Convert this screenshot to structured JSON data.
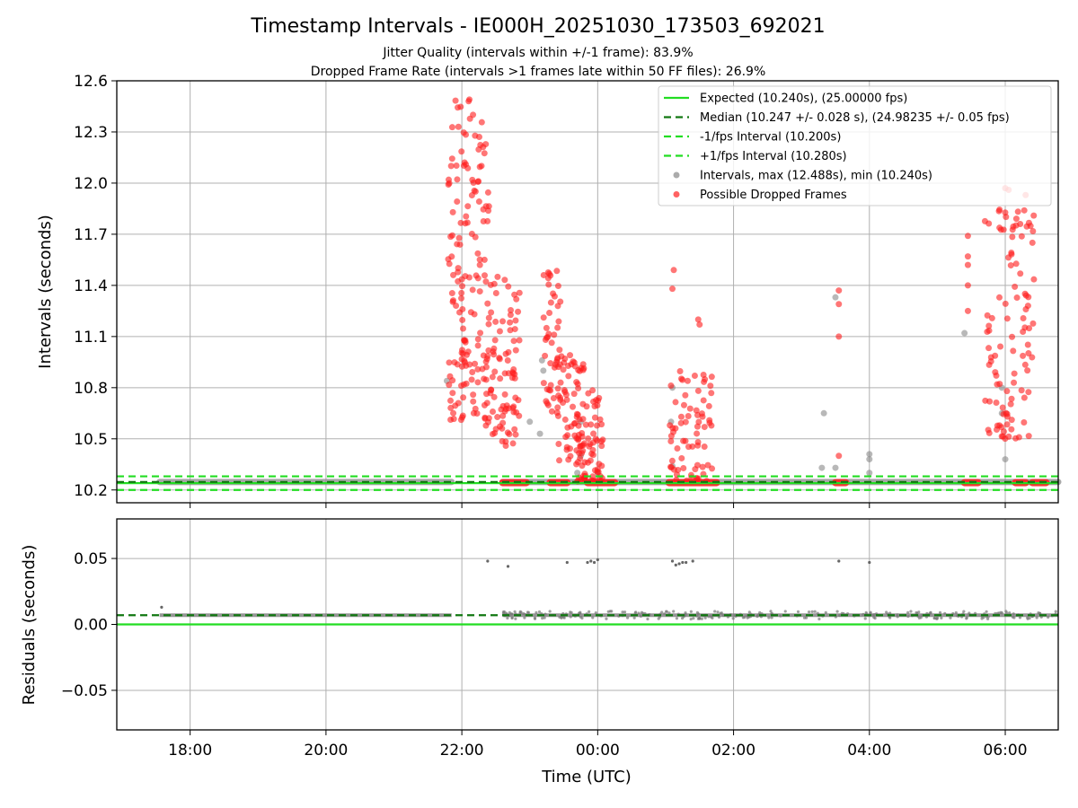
{
  "chart_data": [
    {
      "type": "scatter",
      "panel": "top",
      "title": "Timestamp Intervals - IE000H_20251030_173503_692021",
      "subtitles": [
        "Jitter Quality (intervals within +/-1 frame): 83.9%",
        "Dropped Frame Rate (intervals >1 frames late within 50 FF files): 26.9%"
      ],
      "xlabel": "",
      "ylabel": "Intervals (seconds)",
      "x_range_hours": [
        16.92,
        30.78
      ],
      "ylim": [
        10.125,
        12.6
      ],
      "xticks": [
        {
          "h": 18,
          "label": "18:00"
        },
        {
          "h": 20,
          "label": "20:00"
        },
        {
          "h": 22,
          "label": "22:00"
        },
        {
          "h": 24,
          "label": "00:00"
        },
        {
          "h": 26,
          "label": "02:00"
        },
        {
          "h": 28,
          "label": "04:00"
        },
        {
          "h": 30,
          "label": "06:00"
        }
      ],
      "yticks": [
        {
          "v": 10.2,
          "label": "10.2"
        },
        {
          "v": 10.5,
          "label": "10.5"
        },
        {
          "v": 10.8,
          "label": "10.8"
        },
        {
          "v": 11.1,
          "label": "11.1"
        },
        {
          "v": 11.4,
          "label": "11.4"
        },
        {
          "v": 11.7,
          "label": "11.7"
        },
        {
          "v": 12.0,
          "label": "12.0"
        },
        {
          "v": 12.3,
          "label": "12.3"
        },
        {
          "v": 12.6,
          "label": "12.6"
        }
      ],
      "grid": true,
      "legend_position": "top-right",
      "legend": [
        {
          "label": "Expected (10.240s), (25.00000 fps)",
          "kind": "line",
          "color": "#22dd22",
          "dash": ""
        },
        {
          "label": "Median (10.247 +/- 0.028 s), (24.98235 +/- 0.05 fps)",
          "kind": "line",
          "color": "#117711",
          "dash": "8,5"
        },
        {
          "label": "-1/fps Interval (10.200s)",
          "kind": "line",
          "color": "#22dd22",
          "dash": "8,5"
        },
        {
          "label": "+1/fps Interval (10.280s)",
          "kind": "line",
          "color": "#22dd22",
          "dash": "8,5"
        },
        {
          "label": "Intervals, max (12.488s), min (10.240s)",
          "kind": "marker",
          "color": "#888888"
        },
        {
          "label": "Possible Dropped Frames",
          "kind": "marker",
          "color": "#ff2020"
        }
      ],
      "reference_lines": [
        {
          "name": "expected",
          "y": 10.24,
          "color": "#22dd22",
          "dash": ""
        },
        {
          "name": "median",
          "y": 10.247,
          "color": "#117711",
          "dash": "8,5"
        },
        {
          "name": "minus_one_frame",
          "y": 10.2,
          "color": "#22dd22",
          "dash": "8,5"
        },
        {
          "name": "plus_one_frame",
          "y": 10.28,
          "color": "#22dd22",
          "dash": "8,5"
        }
      ],
      "baseline_segments": [
        {
          "x": [
            17.55,
            21.85
          ],
          "y": 10.247
        },
        {
          "x": [
            22.6,
            30.78
          ],
          "y": 10.247
        }
      ],
      "dropped_frame_clusters": [
        {
          "x": [
            21.8,
            22.4
          ],
          "y": [
            10.6,
            12.5
          ],
          "n": 150
        },
        {
          "x": [
            22.35,
            22.85
          ],
          "y": [
            10.45,
            11.45
          ],
          "n": 90
        },
        {
          "x": [
            23.2,
            23.45
          ],
          "y": [
            10.6,
            11.6
          ],
          "n": 45
        },
        {
          "x": [
            23.4,
            23.8
          ],
          "y": [
            10.35,
            11.0
          ],
          "n": 60
        },
        {
          "x": [
            23.7,
            24.1
          ],
          "y": [
            10.25,
            10.8
          ],
          "n": 70
        },
        {
          "x": [
            25.05,
            25.7
          ],
          "y": [
            10.25,
            10.9
          ],
          "n": 70
        },
        {
          "x": [
            29.7,
            30.45
          ],
          "y": [
            10.5,
            11.9
          ],
          "n": 100
        }
      ],
      "dropped_frame_points": [
        {
          "x": 21.95,
          "y": 12.33
        },
        {
          "x": 22.1,
          "y": 12.48
        },
        {
          "x": 25.5,
          "y": 11.17
        },
        {
          "x": 25.48,
          "y": 11.2
        },
        {
          "x": 25.12,
          "y": 11.49
        },
        {
          "x": 25.1,
          "y": 11.38
        },
        {
          "x": 27.55,
          "y": 11.37
        },
        {
          "x": 27.55,
          "y": 11.29
        },
        {
          "x": 27.55,
          "y": 11.1
        },
        {
          "x": 27.55,
          "y": 10.4
        },
        {
          "x": 29.45,
          "y": 11.69
        },
        {
          "x": 29.45,
          "y": 11.57
        },
        {
          "x": 29.45,
          "y": 11.52
        },
        {
          "x": 29.45,
          "y": 11.4
        },
        {
          "x": 29.45,
          "y": 11.25
        },
        {
          "x": 30.0,
          "y": 11.97
        },
        {
          "x": 30.05,
          "y": 11.96
        },
        {
          "x": 30.3,
          "y": 11.93
        },
        {
          "x": 30.28,
          "y": 11.84
        },
        {
          "x": 30.22,
          "y": 11.76
        },
        {
          "x": 30.4,
          "y": 11.65
        }
      ],
      "dropped_frame_bands": [
        {
          "x": [
            22.6,
            22.95
          ],
          "y": 10.243
        },
        {
          "x": [
            23.3,
            23.55
          ],
          "y": 10.243
        },
        {
          "x": [
            23.85,
            24.25
          ],
          "y": 10.243
        },
        {
          "x": [
            25.05,
            25.75
          ],
          "y": 10.243
        },
        {
          "x": [
            27.5,
            27.65
          ],
          "y": 10.243
        },
        {
          "x": [
            29.4,
            29.6
          ],
          "y": 10.243
        },
        {
          "x": [
            30.15,
            30.3
          ],
          "y": 10.243
        },
        {
          "x": [
            30.4,
            30.6
          ],
          "y": 10.243
        }
      ],
      "gray_points": [
        {
          "x": 21.78,
          "y": 10.84
        },
        {
          "x": 23.0,
          "y": 10.6
        },
        {
          "x": 23.15,
          "y": 10.53
        },
        {
          "x": 23.18,
          "y": 10.96
        },
        {
          "x": 23.2,
          "y": 10.9
        },
        {
          "x": 23.75,
          "y": 10.6
        },
        {
          "x": 23.75,
          "y": 10.4
        },
        {
          "x": 23.7,
          "y": 10.3
        },
        {
          "x": 24.0,
          "y": 10.3
        },
        {
          "x": 25.1,
          "y": 10.8
        },
        {
          "x": 25.08,
          "y": 10.6
        },
        {
          "x": 25.1,
          "y": 10.34
        },
        {
          "x": 27.33,
          "y": 10.65
        },
        {
          "x": 27.3,
          "y": 10.33
        },
        {
          "x": 27.5,
          "y": 10.33
        },
        {
          "x": 27.5,
          "y": 11.33
        },
        {
          "x": 28.0,
          "y": 10.41
        },
        {
          "x": 28.0,
          "y": 10.38
        },
        {
          "x": 28.0,
          "y": 10.3
        },
        {
          "x": 29.4,
          "y": 11.12
        },
        {
          "x": 29.95,
          "y": 10.8
        },
        {
          "x": 29.95,
          "y": 10.65
        },
        {
          "x": 30.0,
          "y": 10.38
        }
      ]
    },
    {
      "type": "scatter",
      "panel": "bottom",
      "xlabel": "Time (UTC)",
      "ylabel": "Residuals (seconds)",
      "x_range_hours": [
        16.92,
        30.78
      ],
      "ylim": [
        -0.08,
        0.08
      ],
      "yticks": [
        {
          "v": 0.05,
          "label": "0.05"
        },
        {
          "v": 0.0,
          "label": "0.00"
        },
        {
          "v": -0.05,
          "label": "−0.05"
        }
      ],
      "grid": true,
      "reference_lines": [
        {
          "name": "expected",
          "y": 0.0,
          "color": "#22dd22",
          "dash": ""
        },
        {
          "name": "median",
          "y": 0.007,
          "color": "#117711",
          "dash": "8,5"
        }
      ],
      "residual_baseline_segments": [
        {
          "x": [
            17.55,
            21.85
          ],
          "y": 0.007,
          "spread": 0.001
        },
        {
          "x": [
            22.6,
            30.78
          ],
          "y": 0.007,
          "spread": 0.003
        }
      ],
      "residual_outliers": [
        {
          "x": 17.58,
          "y": 0.013
        },
        {
          "x": 22.38,
          "y": 0.048
        },
        {
          "x": 22.68,
          "y": 0.044
        },
        {
          "x": 23.55,
          "y": 0.047
        },
        {
          "x": 23.85,
          "y": 0.047
        },
        {
          "x": 23.9,
          "y": 0.048
        },
        {
          "x": 23.95,
          "y": 0.047
        },
        {
          "x": 24.0,
          "y": 0.049
        },
        {
          "x": 25.1,
          "y": 0.048
        },
        {
          "x": 25.15,
          "y": 0.045
        },
        {
          "x": 25.2,
          "y": 0.046
        },
        {
          "x": 25.25,
          "y": 0.047
        },
        {
          "x": 25.3,
          "y": 0.047
        },
        {
          "x": 25.4,
          "y": 0.048
        },
        {
          "x": 27.55,
          "y": 0.048
        },
        {
          "x": 28.0,
          "y": 0.047
        }
      ]
    }
  ]
}
